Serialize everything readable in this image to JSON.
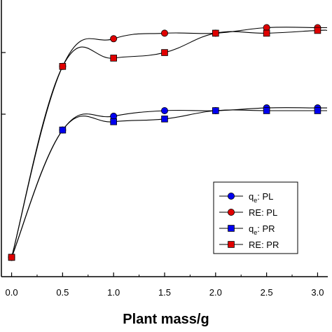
{
  "chart_data": {
    "type": "line",
    "xlabel": "Plant mass/g",
    "ylabel": "",
    "x": [
      0.0,
      0.5,
      1.0,
      1.5,
      2.0,
      2.5,
      3.0
    ],
    "x_tick_labels": [
      "0.0",
      "0.5",
      "1.0",
      "1.5",
      "2.0",
      "2.5",
      "3.0"
    ],
    "xlim": [
      -0.1,
      3.1
    ],
    "ylim": [
      0,
      100
    ],
    "series": [
      {
        "name_main": "q",
        "name_sub": "e",
        "name_rest": ": PL",
        "color": "#0000ee",
        "marker": "circle",
        "values": [
          7,
          53,
          58,
          60,
          60,
          61,
          61
        ]
      },
      {
        "name_main": "RE",
        "name_sub": "",
        "name_rest": ": PL",
        "color": "#e00000",
        "marker": "circle",
        "values": [
          7,
          76,
          86,
          88,
          88,
          90,
          90
        ]
      },
      {
        "name_main": "q",
        "name_sub": "e",
        "name_rest": ": PR",
        "color": "#0000ee",
        "marker": "square",
        "values": [
          7,
          53,
          56,
          57,
          60,
          60,
          60
        ]
      },
      {
        "name_main": "RE",
        "name_sub": "",
        "name_rest": ": PR",
        "color": "#e00000",
        "marker": "square",
        "values": [
          7,
          76,
          79,
          81,
          88,
          88,
          89
        ]
      }
    ],
    "legend_position": "lower-right",
    "grid": false
  }
}
